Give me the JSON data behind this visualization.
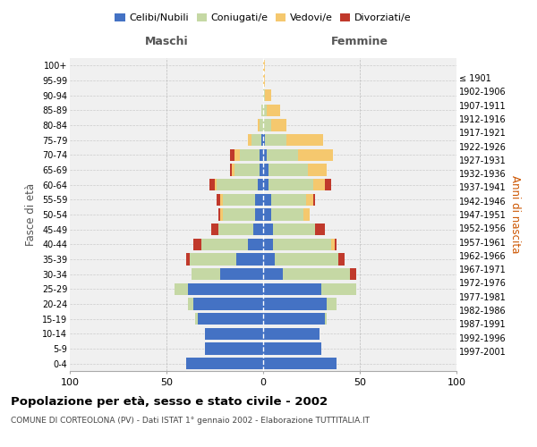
{
  "age_groups": [
    "0-4",
    "5-9",
    "10-14",
    "15-19",
    "20-24",
    "25-29",
    "30-34",
    "35-39",
    "40-44",
    "45-49",
    "50-54",
    "55-59",
    "60-64",
    "65-69",
    "70-74",
    "75-79",
    "80-84",
    "85-89",
    "90-94",
    "95-99",
    "100+"
  ],
  "birth_years": [
    "1997-2001",
    "1992-1996",
    "1987-1991",
    "1982-1986",
    "1977-1981",
    "1972-1976",
    "1967-1971",
    "1962-1966",
    "1957-1961",
    "1952-1956",
    "1947-1951",
    "1942-1946",
    "1937-1941",
    "1932-1936",
    "1927-1931",
    "1922-1926",
    "1917-1921",
    "1912-1916",
    "1907-1911",
    "1902-1906",
    "≤ 1901"
  ],
  "colors": {
    "celibi": "#4472C4",
    "coniugati": "#C5D8A4",
    "vedovi": "#F5C86E",
    "divorziati": "#C0392B"
  },
  "maschi": {
    "celibi": [
      40,
      30,
      30,
      34,
      36,
      39,
      22,
      14,
      8,
      5,
      4,
      4,
      3,
      2,
      2,
      1,
      0,
      0,
      0,
      0,
      0
    ],
    "coniugati": [
      0,
      0,
      0,
      1,
      3,
      7,
      15,
      24,
      24,
      18,
      17,
      17,
      21,
      13,
      10,
      5,
      2,
      1,
      0,
      0,
      0
    ],
    "vedovi": [
      0,
      0,
      0,
      0,
      0,
      0,
      0,
      0,
      0,
      0,
      1,
      1,
      1,
      1,
      3,
      2,
      1,
      0,
      0,
      0,
      0
    ],
    "divorziati": [
      0,
      0,
      0,
      0,
      0,
      0,
      0,
      2,
      4,
      4,
      1,
      2,
      3,
      1,
      2,
      0,
      0,
      0,
      0,
      0,
      0
    ]
  },
  "femmine": {
    "celibi": [
      38,
      30,
      29,
      32,
      33,
      30,
      10,
      6,
      5,
      5,
      4,
      4,
      3,
      3,
      2,
      1,
      0,
      0,
      0,
      0,
      0
    ],
    "coniugati": [
      0,
      0,
      0,
      1,
      5,
      18,
      35,
      33,
      30,
      22,
      17,
      18,
      23,
      20,
      16,
      11,
      4,
      2,
      1,
      0,
      0
    ],
    "vedovi": [
      0,
      0,
      0,
      0,
      0,
      0,
      0,
      0,
      2,
      0,
      3,
      4,
      6,
      10,
      18,
      19,
      8,
      7,
      3,
      1,
      1
    ],
    "divorziati": [
      0,
      0,
      0,
      0,
      0,
      0,
      3,
      3,
      1,
      5,
      0,
      1,
      3,
      0,
      0,
      0,
      0,
      0,
      0,
      0,
      0
    ]
  },
  "xlim": [
    -100,
    100
  ],
  "xticks": [
    -100,
    -50,
    0,
    50,
    100
  ],
  "xticklabels": [
    "100",
    "50",
    "0",
    "50",
    "100"
  ],
  "title": "Popolazione per età, sesso e stato civile - 2002",
  "subtitle": "COMUNE DI CORTEOLONA (PV) - Dati ISTAT 1° gennaio 2002 - Elaborazione TUTTITALIA.IT",
  "ylabel_left": "Fasce di età",
  "ylabel_right": "Anni di nascita",
  "bg_color": "#f0f0f0",
  "grid_color": "#cccccc",
  "maschi_label": "Maschi",
  "femmine_label": "Femmine"
}
